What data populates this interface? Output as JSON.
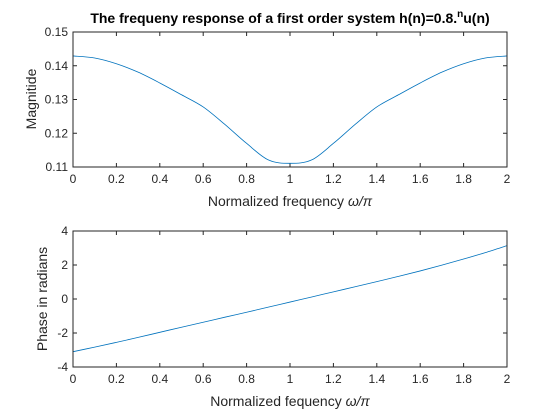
{
  "figure": {
    "background": "#ffffff",
    "axes_color": "#262626",
    "line_color": "#0072bd"
  },
  "chart_data": [
    {
      "type": "line",
      "title_main": "The frequeny response of a first order system h(n)=0.8.",
      "title_sup": "n",
      "title_tail": "u(n)",
      "xlabel_text": "Normalized frequency ",
      "xlabel_symbol": "ω/π",
      "ylabel": "Magnitide",
      "xlim": [
        0,
        2
      ],
      "ylim": [
        0.11,
        0.15
      ],
      "xticks": [
        0,
        0.2,
        0.4,
        0.6,
        0.8,
        1,
        1.2,
        1.4,
        1.6,
        1.8,
        2
      ],
      "xticklabels": [
        "0",
        "0.2",
        "0.4",
        "0.6",
        "0.8",
        "1",
        "1.2",
        "1.4",
        "1.6",
        "1.8",
        "2"
      ],
      "yticks": [
        0.11,
        0.12,
        0.13,
        0.14,
        0.15
      ],
      "yticklabels": [
        "0.11",
        "0.12",
        "0.13",
        "0.14",
        "0.15"
      ],
      "grid": false,
      "series": [
        {
          "x": [
            0,
            0.1,
            0.2,
            0.3,
            0.4,
            0.5,
            0.6,
            0.7,
            0.8,
            0.9,
            1.0,
            1.1,
            1.2,
            1.3,
            1.4,
            1.5,
            1.6,
            1.7,
            1.8,
            1.9,
            2.0
          ],
          "values": [
            0.1429,
            0.1423,
            0.1406,
            0.1381,
            0.1349,
            0.1314,
            0.1278,
            0.1226,
            0.117,
            0.1121,
            0.1111,
            0.1121,
            0.117,
            0.1226,
            0.1278,
            0.1314,
            0.1349,
            0.1381,
            0.1406,
            0.1423,
            0.1429
          ]
        }
      ]
    },
    {
      "type": "line",
      "xlabel_text": "Normalized fequency ",
      "xlabel_symbol": "ω/π",
      "ylabel": "Phase in radians",
      "xlim": [
        0,
        2
      ],
      "ylim": [
        -4,
        4
      ],
      "xticks": [
        0,
        0.2,
        0.4,
        0.6,
        0.8,
        1,
        1.2,
        1.4,
        1.6,
        1.8,
        2
      ],
      "xticklabels": [
        "0",
        "0.2",
        "0.4",
        "0.6",
        "0.8",
        "1",
        "1.2",
        "1.4",
        "1.6",
        "1.8",
        "2"
      ],
      "yticks": [
        -4,
        -2,
        0,
        2,
        4
      ],
      "yticklabels": [
        "-4",
        "-2",
        "0",
        "2",
        "4"
      ],
      "grid": false,
      "series": [
        {
          "x": [
            0,
            0.0001,
            0.1,
            0.2,
            0.3,
            0.4,
            0.5,
            0.6,
            0.7,
            0.8,
            0.9,
            1.0,
            1.1,
            1.2,
            1.3,
            1.4,
            1.5,
            1.6,
            1.7,
            1.8,
            1.9,
            2.0
          ],
          "values": [
            0,
            -3.1,
            -2.83,
            -2.55,
            -2.26,
            -1.96,
            -1.66,
            -1.37,
            -1.07,
            -0.78,
            -0.48,
            -0.18,
            0.12,
            0.42,
            0.72,
            1.02,
            1.33,
            1.65,
            1.99,
            2.35,
            2.73,
            3.14
          ]
        }
      ]
    }
  ]
}
